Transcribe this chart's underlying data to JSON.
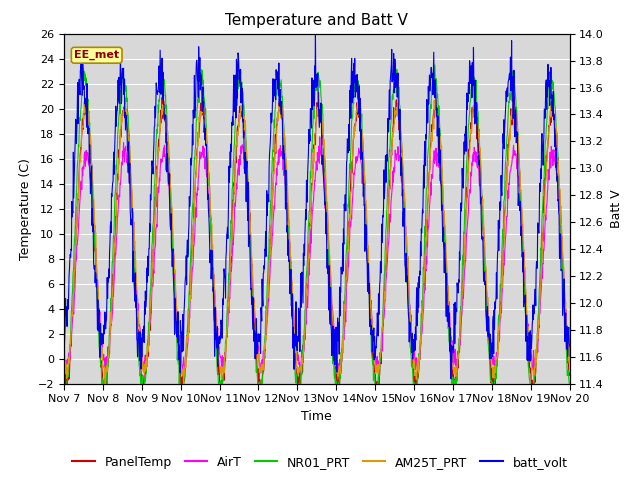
{
  "title": "Temperature and Batt V",
  "xlabel": "Time",
  "ylabel_left": "Temperature (C)",
  "ylabel_right": "Batt V",
  "ylim_left": [
    -2,
    26
  ],
  "ylim_right": [
    11.4,
    14.0
  ],
  "xlim": [
    0,
    13
  ],
  "xtick_labels": [
    "Nov 7",
    "Nov 8",
    "Nov 9",
    "Nov 10",
    "Nov 11",
    "Nov 12",
    "Nov 13",
    "Nov 14",
    "Nov 15",
    "Nov 16",
    "Nov 17",
    "Nov 18",
    "Nov 19",
    "Nov 20"
  ],
  "xtick_positions": [
    0,
    1,
    2,
    3,
    4,
    5,
    6,
    7,
    8,
    9,
    10,
    11,
    12,
    13
  ],
  "yticks_left": [
    -2,
    0,
    2,
    4,
    6,
    8,
    10,
    12,
    14,
    16,
    18,
    20,
    22,
    24,
    26
  ],
  "yticks_right": [
    11.4,
    11.6,
    11.8,
    12.0,
    12.2,
    12.4,
    12.6,
    12.8,
    13.0,
    13.2,
    13.4,
    13.6,
    13.8,
    14.0
  ],
  "colors": {
    "PanelTemp": "#cc0000",
    "AirT": "#ff00ff",
    "NR01_PRT": "#00cc00",
    "AM25T_PRT": "#dd9900",
    "batt_volt": "#0000ee"
  },
  "annotation_text": "EE_met",
  "bg_color": "#d8d8d8",
  "fig_bg_color": "#ffffff",
  "title_fontsize": 11,
  "label_fontsize": 9,
  "tick_fontsize": 8,
  "legend_fontsize": 9
}
